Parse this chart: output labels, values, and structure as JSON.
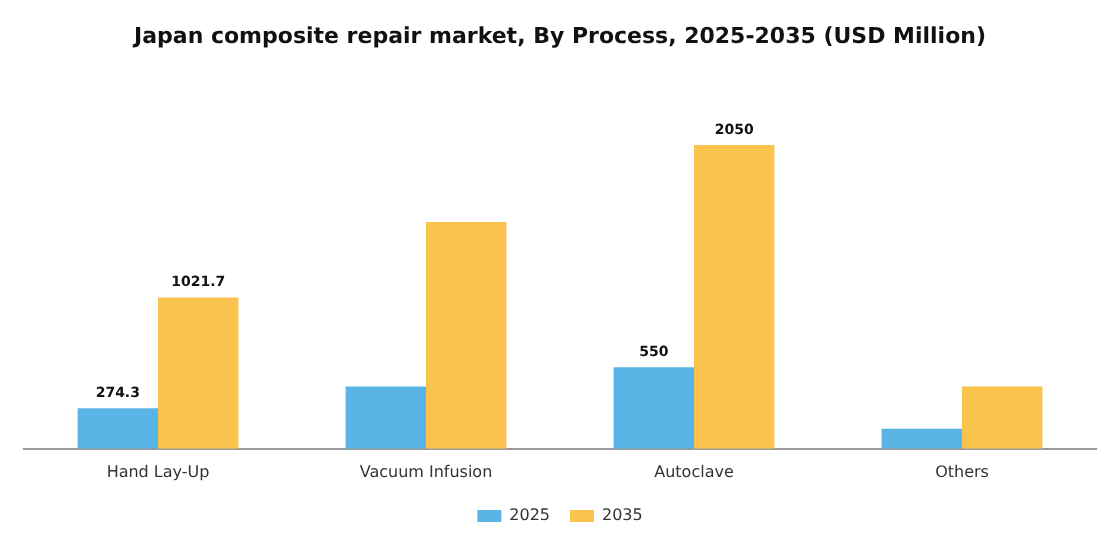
{
  "chart_data": {
    "type": "bar",
    "title": "Japan composite repair market, By Process, 2025-2035 (USD Million)",
    "categories": [
      "Hand Lay-Up",
      "Vacuum Infusion",
      "Autoclave",
      "Others"
    ],
    "series": [
      {
        "name": "2025",
        "color": "#5ab4e5",
        "values": [
          274.3,
          420,
          550,
          135
        ],
        "value_labels": [
          "274.3",
          null,
          "550",
          null
        ]
      },
      {
        "name": "2035",
        "color": "#f9c34e",
        "values": [
          1021.7,
          1530,
          2050,
          420
        ],
        "value_labels": [
          "1021.7",
          null,
          "2050",
          null
        ]
      }
    ],
    "legend": "bottom",
    "grid": false
  }
}
